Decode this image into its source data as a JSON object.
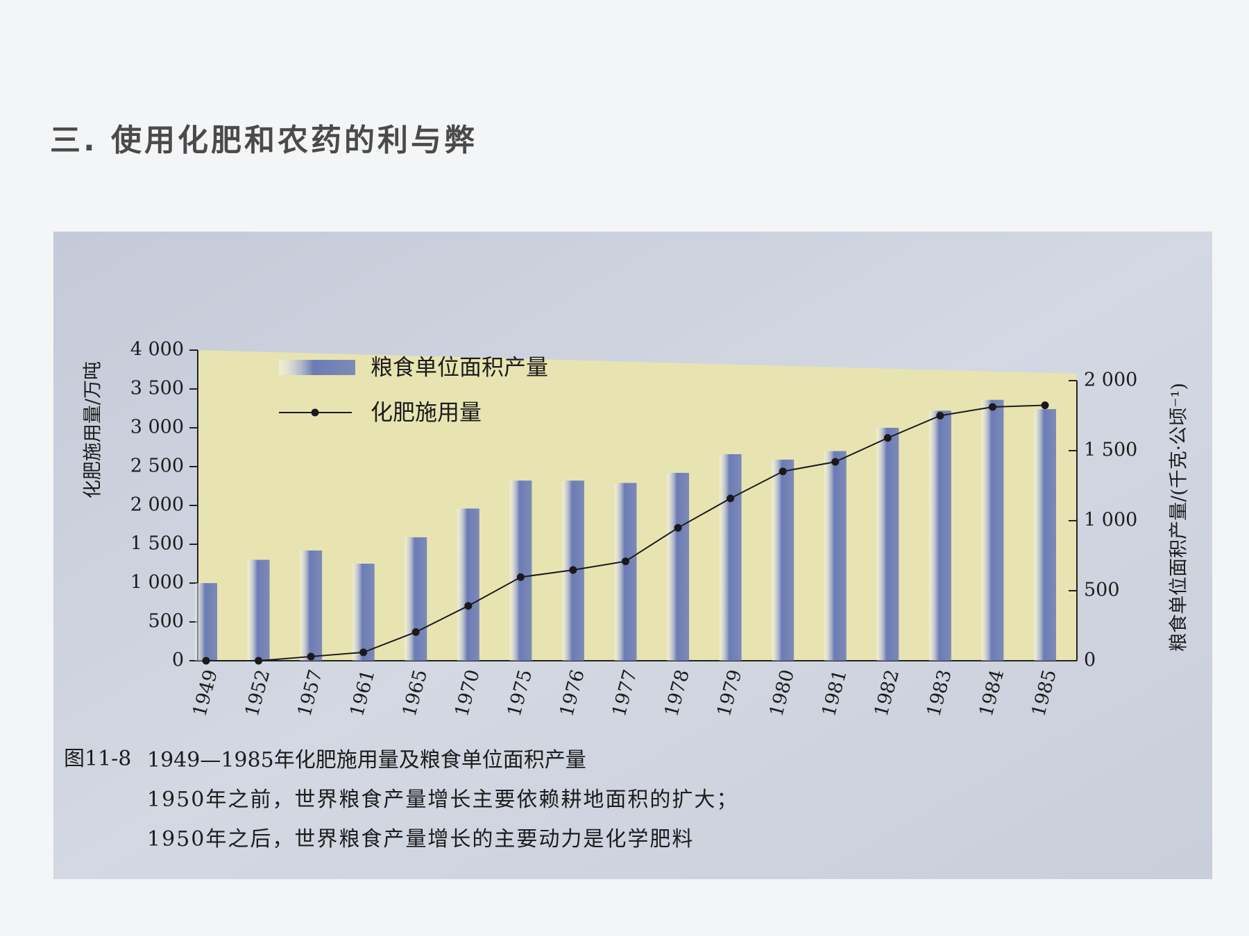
{
  "slide_title": "三. 使用化肥和农药的利与弊",
  "chart_data": {
    "type": "bar",
    "caption_label": "图11-8",
    "title": "1949—1985年化肥施用量及粮食单位面积产量",
    "notes": [
      "1950年之前，世界粮食产量增长主要依赖耕地面积的扩大；",
      "1950年之后，世界粮食产量增长的主要动力是化学肥料"
    ],
    "y_label": "化肥施用量/万吨",
    "y2_label": "粮食单位面积产量/(千克·公顷⁻¹)",
    "categories": [
      "1949",
      "1952",
      "1957",
      "1961",
      "1965",
      "1970",
      "1975",
      "1976",
      "1977",
      "1978",
      "1979",
      "1980",
      "1981",
      "1982",
      "1983",
      "1984",
      "1985"
    ],
    "series": [
      {
        "name": "粮食单位面积产量",
        "type": "bar",
        "color": "#6b7bb6",
        "values": [
          1000,
          1300,
          1420,
          1250,
          1590,
          1960,
          2320,
          2320,
          2290,
          2420,
          2660,
          2590,
          2700,
          3000,
          3220,
          3360,
          3240
        ]
      },
      {
        "name": "化肥施用量",
        "type": "line",
        "axis": "y2",
        "color": "#1a1a1a",
        "values": [
          0,
          0,
          30,
          60,
          205,
          392,
          597,
          648,
          710,
          949,
          1159,
          1352,
          1420,
          1591,
          1750,
          1812,
          1824
        ]
      }
    ],
    "ylim": [
      0,
      4000
    ],
    "yticks": [
      0,
      500,
      {
        "value": 1000,
        "label": "1 000"
      },
      {
        "value": 1500,
        "label": "1 500"
      },
      {
        "value": 2000,
        "label": "2 000"
      },
      {
        "value": 2500,
        "label": "2 500"
      },
      {
        "value": 3000,
        "label": "3 000"
      },
      {
        "value": 3500,
        "label": "3 500"
      },
      {
        "value": 4000,
        "label": "4 000"
      }
    ],
    "y2lim": [
      0,
      2000
    ],
    "y2ticks": [
      0,
      500,
      {
        "value": 1000,
        "label": "1 000"
      },
      {
        "value": 1500,
        "label": "1 500"
      },
      {
        "value": 2000,
        "label": "2 000"
      }
    ],
    "legend": "upper left",
    "plot_background": "#e7e4b2"
  }
}
